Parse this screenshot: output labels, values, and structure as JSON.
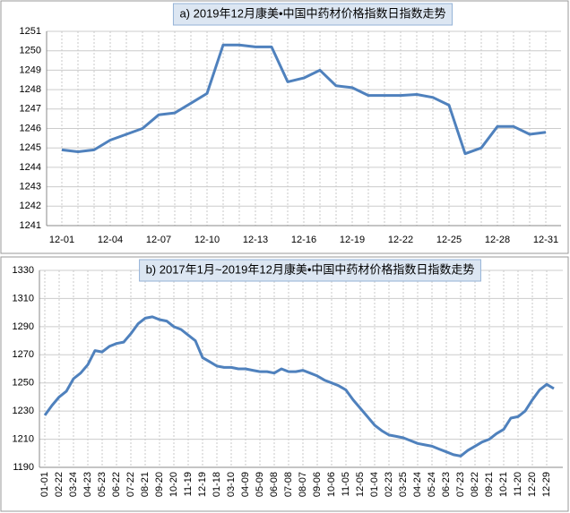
{
  "chart_data": [
    {
      "type": "line",
      "title": "a) 2019年12月康美•中国中药材价格指数日指数走势",
      "categories": [
        "12-01",
        null,
        null,
        "12-04",
        null,
        null,
        "12-07",
        null,
        null,
        "12-10",
        null,
        null,
        "12-13",
        null,
        null,
        "12-16",
        null,
        null,
        "12-19",
        null,
        null,
        "12-22",
        null,
        null,
        "12-25",
        null,
        null,
        "12-28",
        null,
        null,
        "12-31"
      ],
      "series": [
        {
          "color": "#4f81bd",
          "values": [
            1244.9,
            1244.8,
            1244.9,
            1245.4,
            1245.7,
            1246.0,
            1246.7,
            1246.8,
            1247.3,
            1247.8,
            1250.3,
            1250.3,
            1250.2,
            1250.2,
            1248.4,
            1248.6,
            1249.0,
            1248.2,
            1248.1,
            1247.7,
            1247.7,
            1247.7,
            1247.75,
            1247.6,
            1247.2,
            1244.7,
            1245.0,
            1246.1,
            1246.1,
            1245.7,
            1245.8
          ]
        }
      ],
      "ylim": [
        1241,
        1251
      ],
      "yticks": [
        1241,
        1242,
        1243,
        1244,
        1245,
        1246,
        1247,
        1248,
        1249,
        1250,
        1251
      ],
      "grid": true
    },
    {
      "type": "line",
      "title": "b) 2017年1月~2019年12月康美•中国中药材价格指数日指数走势",
      "categories": [
        "01-01",
        null,
        "02-22",
        null,
        "03-24",
        null,
        "04-23",
        null,
        "05-23",
        null,
        "06-22",
        null,
        "07-22",
        null,
        "08-21",
        null,
        "09-20",
        null,
        "10-20",
        null,
        "11-19",
        null,
        "12-19",
        null,
        "01-18",
        null,
        "03-10",
        null,
        "04-09",
        null,
        "05-09",
        null,
        "06-08",
        null,
        "07-08",
        null,
        "08-07",
        null,
        "09-06",
        null,
        "10-06",
        null,
        "11-05",
        null,
        "12-05",
        null,
        "01-04",
        null,
        "02-23",
        null,
        "03-25",
        null,
        "04-24",
        null,
        "05-24",
        null,
        "06-23",
        null,
        "07-23",
        null,
        "08-22",
        null,
        "09-21",
        null,
        "10-21",
        null,
        "11-20",
        null,
        "12-20",
        null,
        "12-29",
        null
      ],
      "series": [
        {
          "color": "#4f81bd",
          "values": [
            1227,
            1234,
            1240,
            1244,
            1253,
            1257,
            1263,
            1273,
            1272,
            1276,
            1278,
            1279,
            1285,
            1292,
            1296,
            1297,
            1295,
            1294,
            1290,
            1288,
            1284,
            1280,
            1268,
            1265,
            1262,
            1261,
            1261,
            1260,
            1260,
            1259,
            1258,
            1258,
            1257,
            1260,
            1258,
            1258,
            1259,
            1257,
            1255,
            1252,
            1250,
            1248,
            1245,
            1238,
            1232,
            1226,
            1220,
            1216,
            1213,
            1212,
            1211,
            1209,
            1207,
            1206,
            1205,
            1203,
            1201,
            1199,
            1198,
            1202,
            1205,
            1208,
            1210,
            1214,
            1217,
            1225,
            1226,
            1230,
            1238,
            1245,
            1249,
            1246
          ]
        }
      ],
      "ylim": [
        1190,
        1330
      ],
      "yticks": [
        1190,
        1210,
        1230,
        1250,
        1270,
        1290,
        1310,
        1330
      ],
      "grid": true
    }
  ]
}
